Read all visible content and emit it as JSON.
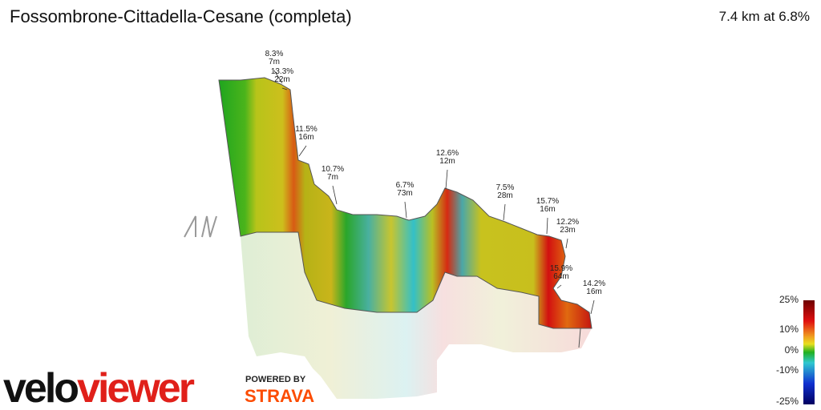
{
  "header": {
    "title": "Fossombrone-Cittadella-Cesane (completa)",
    "summary": "7.4 km at 6.8%"
  },
  "annotations": [
    {
      "grade": "8.3%",
      "length": "7m"
    },
    {
      "grade": "13.3%",
      "length": "22m"
    },
    {
      "grade": "11.5%",
      "length": "16m"
    },
    {
      "grade": "10.7%",
      "length": "7m"
    },
    {
      "grade": "6.7%",
      "length": "73m"
    },
    {
      "grade": "12.6%",
      "length": "12m"
    },
    {
      "grade": "7.5%",
      "length": "28m"
    },
    {
      "grade": "15.7%",
      "length": "16m"
    },
    {
      "grade": "12.2%",
      "length": "23m"
    },
    {
      "grade": "15.9%",
      "length": "64m"
    },
    {
      "grade": "14.2%",
      "length": "16m"
    }
  ],
  "colorbar": {
    "labels": [
      "25%",
      "10%",
      "0%",
      "-10%",
      "-25%"
    ]
  },
  "logo": {
    "part1": "velo",
    "part2": "viewer",
    "powered": "POWERED BY",
    "strava": "STRAVA"
  }
}
